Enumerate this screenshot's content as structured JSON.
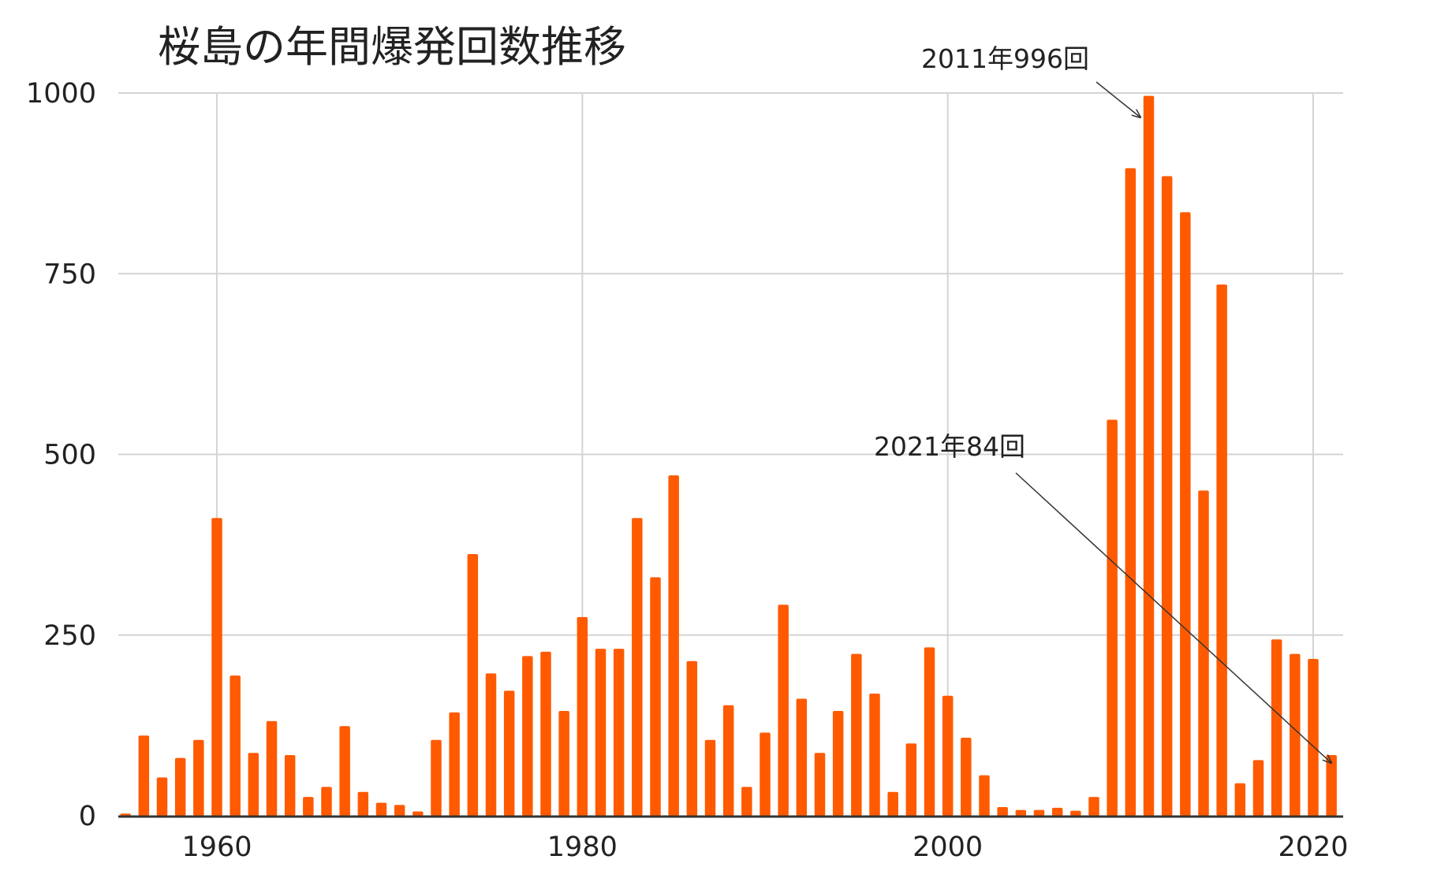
{
  "chart_data": {
    "type": "bar",
    "title": "桜島の年間爆発回数推移",
    "xlabel": "",
    "ylabel": "",
    "ylim": [
      0,
      1000
    ],
    "xlim": [
      1955,
      2021.5
    ],
    "x_ticks": [
      1960,
      1980,
      2000,
      2020
    ],
    "y_ticks": [
      0,
      250,
      500,
      750,
      1000
    ],
    "grid": true,
    "legend": "none",
    "bar_color": "#ff5a00",
    "x": [
      1955,
      1956,
      1957,
      1958,
      1959,
      1960,
      1961,
      1962,
      1963,
      1964,
      1965,
      1966,
      1967,
      1968,
      1969,
      1970,
      1971,
      1972,
      1973,
      1974,
      1975,
      1976,
      1977,
      1978,
      1979,
      1980,
      1981,
      1982,
      1983,
      1984,
      1985,
      1986,
      1987,
      1988,
      1989,
      1990,
      1991,
      1992,
      1993,
      1994,
      1995,
      1996,
      1997,
      1998,
      1999,
      2000,
      2001,
      2002,
      2003,
      2004,
      2005,
      2006,
      2007,
      2008,
      2009,
      2010,
      2011,
      2012,
      2013,
      2014,
      2015,
      2016,
      2017,
      2018,
      2019,
      2020,
      2021
    ],
    "values": [
      3,
      111,
      53,
      80,
      105,
      412,
      194,
      87,
      131,
      84,
      26,
      40,
      124,
      33,
      18,
      15,
      6,
      105,
      143,
      362,
      197,
      173,
      221,
      227,
      145,
      275,
      231,
      231,
      412,
      330,
      471,
      214,
      105,
      153,
      40,
      115,
      292,
      162,
      87,
      145,
      224,
      169,
      33,
      100,
      233,
      166,
      108,
      56,
      12,
      8,
      8,
      11,
      7,
      26,
      548,
      896,
      996,
      885,
      835,
      450,
      735,
      45,
      77,
      244,
      224,
      217,
      84
    ],
    "annotations": [
      {
        "text": "2011年996回",
        "x": 2011,
        "y": 996
      },
      {
        "text": "2021年84回",
        "x": 2021,
        "y": 84
      }
    ]
  }
}
